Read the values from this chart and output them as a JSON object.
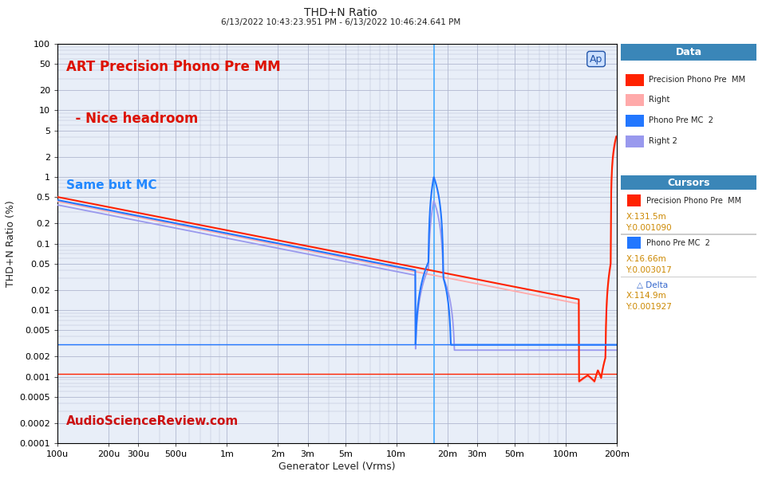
{
  "title": "THD+N Ratio",
  "subtitle": "6/13/2022 10:43:23.951 PM - 6/13/2022 10:46:24.641 PM",
  "xlabel": "Generator Level (Vrms)",
  "ylabel": "THD+N Ratio (%)",
  "annotation1": "ART Precision Phono Pre MM",
  "annotation2": "  - Nice headroom",
  "annotation3": "Same but MC",
  "watermark": "AudioScienceReview.com",
  "background_color": "#ffffff",
  "plot_bg_color": "#e8eef8",
  "grid_color": "#b0b8d0",
  "series_colors": [
    "#ff2200",
    "#ffaaaa",
    "#2277ff",
    "#9999ee"
  ],
  "series_labels": [
    "Precision Phono Pre  MM",
    "Right",
    "Phono Pre MC  2",
    "Right 2"
  ],
  "cursor_hline_red": 0.00109,
  "cursor_hline_blue": 0.003017,
  "cursor_vline_x": 0.01666,
  "xmin": 0.0001,
  "xmax": 0.2,
  "ymin": 0.0001,
  "ymax": 100,
  "xticks": [
    0.0001,
    0.0002,
    0.0003,
    0.0005,
    0.001,
    0.002,
    0.003,
    0.005,
    0.01,
    0.02,
    0.03,
    0.05,
    0.1,
    0.2
  ],
  "xlabels": [
    "100u",
    "200u",
    "300u",
    "500u",
    "1m",
    "2m",
    "3m",
    "5m",
    "10m",
    "20m",
    "30m",
    "50m",
    "100m",
    "200m"
  ],
  "yticks": [
    0.0001,
    0.0002,
    0.0005,
    0.001,
    0.002,
    0.005,
    0.01,
    0.02,
    0.05,
    0.1,
    0.2,
    0.5,
    1,
    2,
    5,
    10,
    20,
    50,
    100
  ],
  "ylabels": [
    "0.0001",
    "0.0002",
    "0.0005",
    "0.001",
    "0.002",
    "0.005",
    "0.01",
    "0.02",
    "0.05",
    "0.1",
    "0.2",
    "0.5",
    "1",
    "2",
    "5",
    "10",
    "20",
    "50",
    "100"
  ],
  "legend_header_color": "#3a86b8",
  "legend_text_color": "#222222",
  "cursor_value_color": "#cc8800",
  "ap_logo_color": "#2255aa",
  "ap_logo_bg": "#cce0ff"
}
